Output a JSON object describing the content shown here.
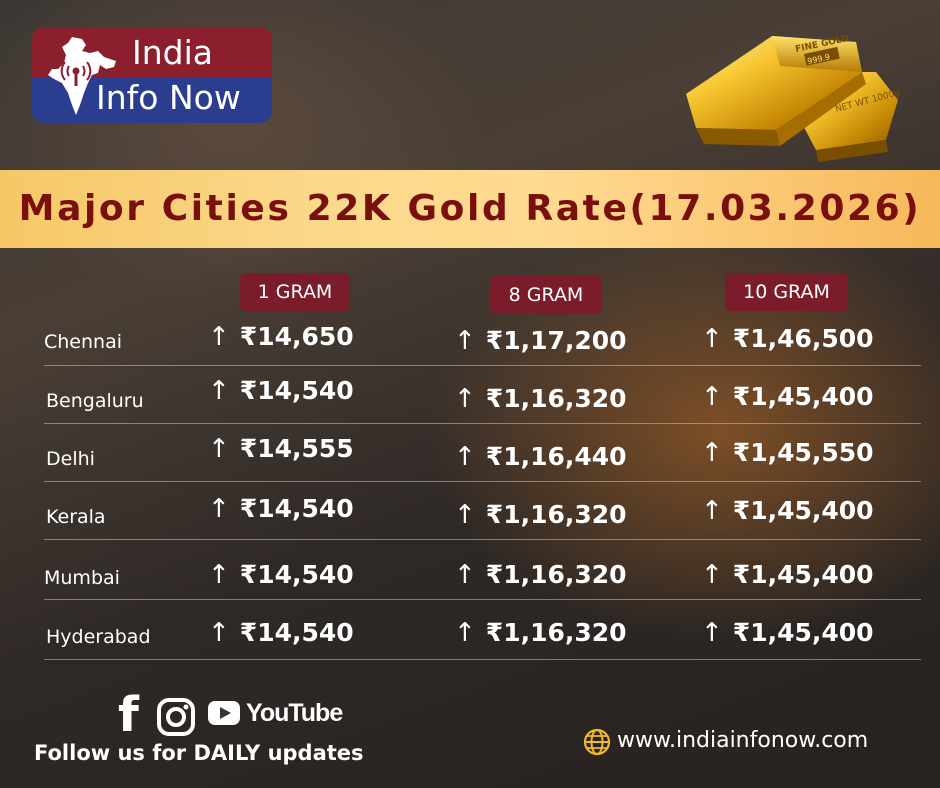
{
  "logo": {
    "line1": "India",
    "line2": "Info Now"
  },
  "gold_bar": {
    "text_top": "FINE GOLD",
    "text_purity": "999.9",
    "text_weight": "NET WT 1000g"
  },
  "title": "Major Cities 22K Gold Rate(17.03.2026)",
  "columns": [
    "1 GRAM",
    "8 GRAM",
    "10 GRAM"
  ],
  "trend_symbol": "↑",
  "rows": [
    {
      "city": "Chennai",
      "g1": "₹14,650",
      "g8": "₹1,17,200",
      "g10": "₹1,46,500"
    },
    {
      "city": "Bengaluru",
      "g1": "₹14,540",
      "g8": "₹1,16,320",
      "g10": "₹1,45,400"
    },
    {
      "city": "Delhi",
      "g1": "₹14,555",
      "g8": "₹1,16,440",
      "g10": "₹1,45,550"
    },
    {
      "city": "Kerala",
      "g1": "₹14,540",
      "g8": "₹1,16,320",
      "g10": "₹1,45,400"
    },
    {
      "city": "Mumbai",
      "g1": "₹14,540",
      "g8": "₹1,16,320",
      "g10": "₹1,45,400"
    },
    {
      "city": "Hyderabad",
      "g1": "₹14,540",
      "g8": "₹1,16,320",
      "g10": "₹1,45,400"
    }
  ],
  "social": {
    "icons": [
      "facebook-icon",
      "instagram-icon",
      "youtube-icon"
    ],
    "youtube_label": "YouTube"
  },
  "follow_text": "Follow  us for DAILY updates",
  "website": "www.indiainfonow.com",
  "colors": {
    "banner_text": "#7a0f0f",
    "header_pill": "#7a1c2a",
    "logo_red": "#8b1f2e",
    "logo_blue": "#2b3d8f",
    "gold": "#f2b82e"
  }
}
